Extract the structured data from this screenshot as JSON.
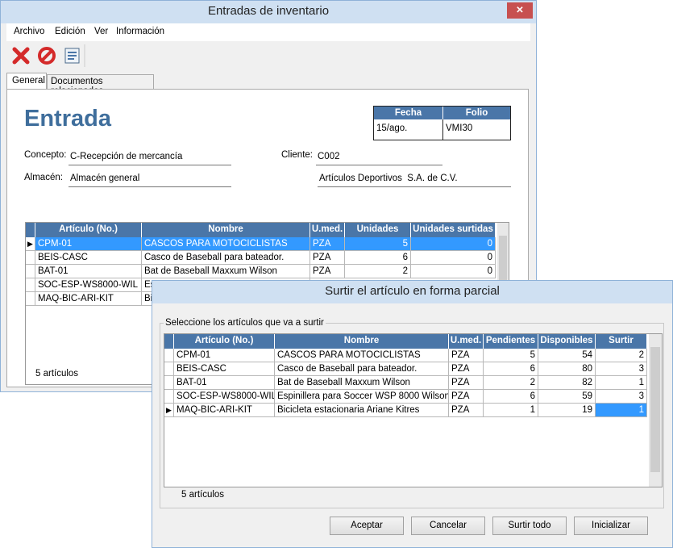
{
  "window": {
    "title": "Entradas de inventario",
    "menu": [
      "Archivo",
      "Edición",
      "Ver",
      "Información"
    ],
    "tabs": [
      "General",
      "Documentos relacionados"
    ]
  },
  "document": {
    "heading": "Entrada",
    "header_table": {
      "columns": [
        "Fecha",
        "Folio"
      ],
      "values": [
        "15/ago.",
        "VMI30"
      ]
    },
    "fields": [
      {
        "label": "Concepto:",
        "value": "C-Recepción de mercancía"
      },
      {
        "label": "Cliente:",
        "value": "C002"
      },
      {
        "label": "Almacén:",
        "value": "Almacén general"
      }
    ],
    "client_name": "Artículos Deportivos  S.A. de C.V."
  },
  "grid": {
    "columns": [
      "Artículo (No.)",
      "Nombre",
      "U.med.",
      "Unidades",
      "Unidades surtidas"
    ],
    "rows": [
      [
        "CPM-01",
        "CASCOS PARA MOTOCICLISTAS",
        "PZA",
        5,
        0
      ],
      [
        "BEIS-CASC",
        "Casco de Baseball para bateador.",
        "PZA",
        6,
        0
      ],
      [
        "BAT-01",
        "Bat de Baseball Maxxum Wilson",
        "PZA",
        2,
        0
      ],
      [
        "SOC-ESP-WS8000-WIL",
        "Es"
      ],
      [
        "MAQ-BIC-ARI-KIT",
        "Bic"
      ]
    ],
    "footer": "5 artículos"
  },
  "dialog": {
    "title": "Surtir el artículo en forma parcial",
    "group_label": "Seleccione los artículos que va a surtir",
    "grid": {
      "columns": [
        "Artículo (No.)",
        "Nombre",
        "U.med.",
        "Pendientes",
        "Disponibles",
        "Surtir"
      ],
      "rows": [
        [
          "CPM-01",
          "CASCOS PARA MOTOCICLISTAS",
          "PZA",
          5,
          54,
          2
        ],
        [
          "BEIS-CASC",
          "Casco de Baseball para bateador.",
          "PZA",
          6,
          80,
          3
        ],
        [
          "BAT-01",
          "Bat de Baseball Maxxum Wilson",
          "PZA",
          2,
          82,
          1
        ],
        [
          "SOC-ESP-WS8000-WIL",
          "Espinillera para Soccer WSP 8000 Wilson",
          "PZA",
          6,
          59,
          3
        ],
        [
          "MAQ-BIC-ARI-KIT",
          "Bicicleta estacionaria Ariane Kitres",
          "PZA",
          1,
          19,
          1
        ]
      ]
    },
    "footer": "5 artículos",
    "buttons": [
      "Aceptar",
      "Cancelar",
      "Surtir todo",
      "Inicializar"
    ]
  }
}
